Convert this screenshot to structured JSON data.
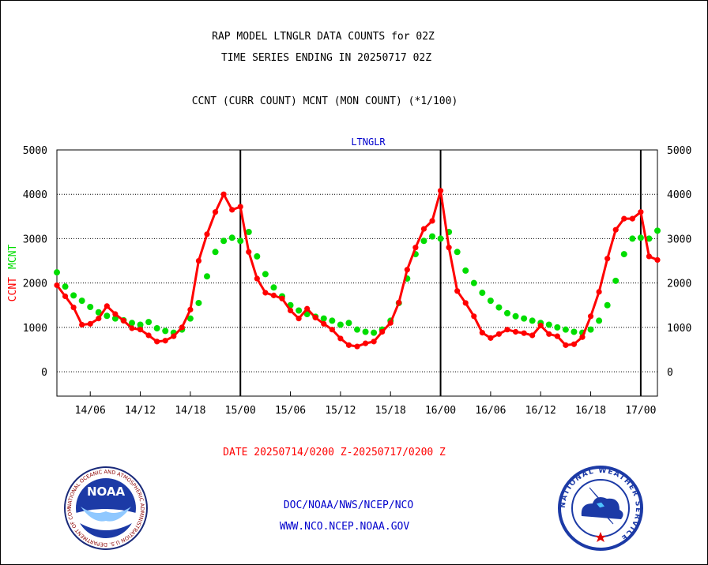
{
  "header": {
    "title_line1": "RAP MODEL LTNGLR DATA COUNTS for 02Z",
    "title_line2": "TIME SERIES ENDING IN 20250717 02Z",
    "subtitle": "CCNT (CURR COUNT) MCNT (MON COUNT) (*1/100)"
  },
  "footer": {
    "date_range": "DATE 20250714/0200 Z-20250717/0200 Z",
    "org_line": "DOC/NOAA/NWS/NCEP/NCO",
    "website": "WWW.NCO.NCEP.NOAA.GOV"
  },
  "logos": {
    "noaa": {
      "label": "NOAA",
      "ring_text": "NATIONAL OCEANIC AND ATMOSPHERIC ADMINISTRATION U.S. DEPARTMENT OF COMMERCE"
    },
    "nws": {
      "ring_text": "NATIONAL WEATHER SERVICE"
    }
  },
  "colors": {
    "ccnt": "#ff0000",
    "mcnt": "#00dd00",
    "plot_label": "#0000cc",
    "footer_red": "#ff0000",
    "footer_blue": "#0000cc"
  },
  "chart_data": {
    "type": "line",
    "title": "LTNGLR",
    "ylabel_left": [
      "CCNT",
      "MCNT"
    ],
    "ylabel_right": "",
    "ylim": [
      -550,
      5000
    ],
    "yticks": [
      5000,
      4000,
      3000,
      2000,
      1000,
      0
    ],
    "x_start": "2025-07-14 02:00",
    "x_end": "2025-07-17 02:00",
    "x_step_hours": 1,
    "xticks": [
      "14/06",
      "14/12",
      "14/18",
      "15/00",
      "15/06",
      "15/12",
      "15/18",
      "16/00",
      "16/06",
      "16/12",
      "16/18",
      "17/00"
    ],
    "day_boundaries": [
      "15/00",
      "16/00",
      "17/00"
    ],
    "grid": "horizontal dotted",
    "series": [
      {
        "name": "CCNT",
        "color": "#ff0000",
        "values": [
          1950,
          1700,
          1450,
          1060,
          1080,
          1200,
          1480,
          1300,
          1150,
          980,
          950,
          820,
          680,
          700,
          800,
          1000,
          1400,
          2500,
          3100,
          3600,
          4000,
          3650,
          3720,
          2700,
          2100,
          1780,
          1720,
          1650,
          1380,
          1200,
          1420,
          1220,
          1080,
          950,
          750,
          600,
          570,
          640,
          680,
          900,
          1100,
          1560,
          2300,
          2800,
          3220,
          3400,
          4080,
          2800,
          1820,
          1550,
          1250,
          880,
          760,
          850,
          950,
          900,
          870,
          820,
          1040,
          850,
          800,
          600,
          620,
          780,
          1250,
          1800,
          2550,
          3200,
          3450,
          3450,
          3600,
          2600,
          2520
        ]
      },
      {
        "name": "MCNT",
        "color": "#00dd00",
        "values": [
          2240,
          1920,
          1720,
          1600,
          1460,
          1340,
          1260,
          1200,
          1160,
          1100,
          1060,
          1120,
          980,
          920,
          880,
          950,
          1200,
          1550,
          2150,
          2700,
          2950,
          3020,
          2950,
          3150,
          2600,
          2200,
          1900,
          1700,
          1500,
          1380,
          1300,
          1240,
          1200,
          1150,
          1060,
          1100,
          950,
          900,
          880,
          950,
          1150,
          1550,
          2100,
          2650,
          2950,
          3050,
          3000,
          3150,
          2700,
          2280,
          2000,
          1780,
          1600,
          1450,
          1320,
          1250,
          1200,
          1150,
          1100,
          1060,
          1000,
          950,
          900,
          880,
          950,
          1150,
          1500,
          2050,
          2650,
          3000,
          3020,
          3000,
          3180
        ]
      }
    ]
  }
}
